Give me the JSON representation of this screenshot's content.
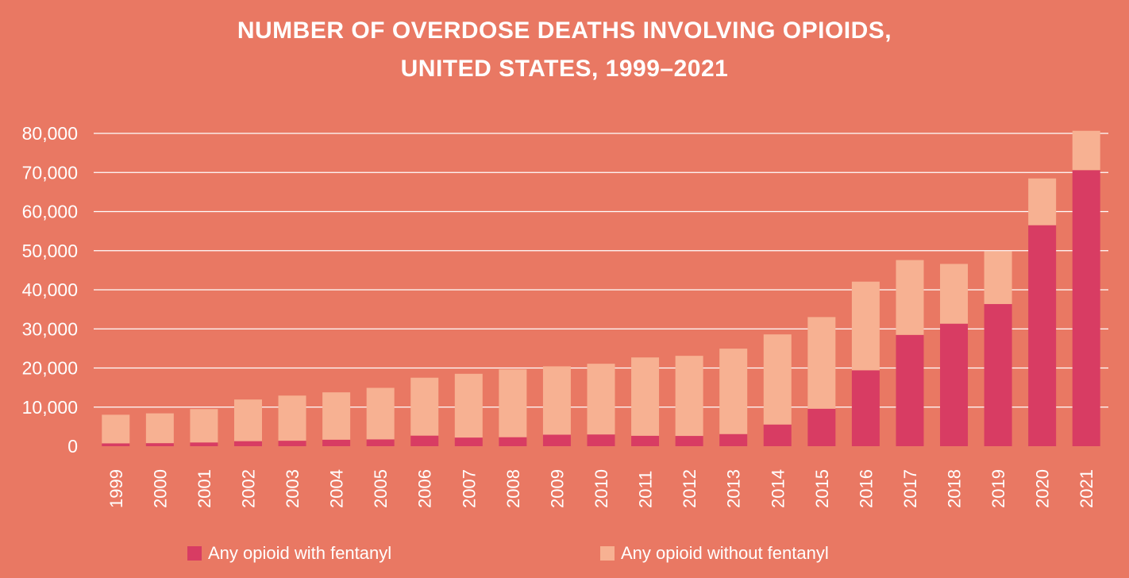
{
  "chart_data": {
    "type": "bar",
    "stacked": true,
    "title_lines": [
      "NUMBER OF OVERDOSE DEATHS INVOLVING OPIOIDS,",
      "UNITED STATES, 1999–2021"
    ],
    "xlabel": "",
    "ylabel": "",
    "ylim": [
      0,
      80000
    ],
    "yticks": [
      {
        "value": 0,
        "label": "0"
      },
      {
        "value": 10000,
        "label": "10,000"
      },
      {
        "value": 20000,
        "label": "20,000"
      },
      {
        "value": 30000,
        "label": "30,000"
      },
      {
        "value": 40000,
        "label": "40,000"
      },
      {
        "value": 50000,
        "label": "50,000"
      },
      {
        "value": 60000,
        "label": "60,000"
      },
      {
        "value": 70000,
        "label": "70,000"
      },
      {
        "value": 80000,
        "label": "80,000"
      }
    ],
    "grid": true,
    "legend_position": "bottom",
    "categories": [
      "1999",
      "2000",
      "2001",
      "2002",
      "2003",
      "2004",
      "2005",
      "2006",
      "2007",
      "2008",
      "2009",
      "2010",
      "2011",
      "2012",
      "2013",
      "2014",
      "2015",
      "2016",
      "2017",
      "2018",
      "2019",
      "2020",
      "2021"
    ],
    "series": [
      {
        "name": "Any opioid with fentanyl",
        "color": "#d83c63",
        "values": [
          730,
          782,
          957,
          1295,
          1400,
          1664,
          1742,
          2707,
          2213,
          2306,
          2946,
          3007,
          2666,
          2628,
          3105,
          5544,
          9580,
          19413,
          28466,
          31335,
          36359,
          56516,
          70601
        ]
      },
      {
        "name": "Any opioid without fentanyl",
        "color": "#f7b192",
        "values": [
          7320,
          7625,
          8539,
          10645,
          11540,
          12110,
          13178,
          14811,
          16303,
          17345,
          17476,
          18082,
          20033,
          20484,
          21847,
          23049,
          23441,
          22675,
          19134,
          15281,
          13501,
          11961,
          10058
        ]
      }
    ]
  },
  "colors": {
    "background": "#e97863",
    "grid": "#ffffff",
    "text": "#ffffff"
  }
}
